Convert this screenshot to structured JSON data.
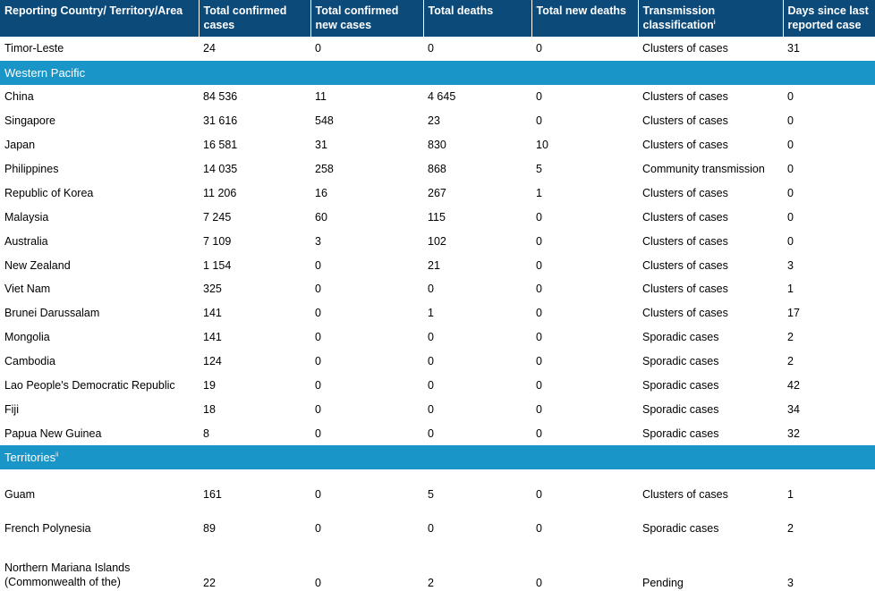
{
  "headers": {
    "country": "Reporting Country/ Territory/Area",
    "confirmed": "Total confirmed cases",
    "new_cases": "Total confirmed new cases",
    "deaths": "Total deaths",
    "new_deaths": "Total new deaths",
    "transmission": "Transmission classification",
    "transmission_sup": "i",
    "days": "Days since last reported case"
  },
  "top_rows": [
    {
      "country": "Timor-Leste",
      "confirmed": "24",
      "new_cases": "0",
      "deaths": "0",
      "new_deaths": "0",
      "transmission": "Clusters of cases",
      "days": "31"
    }
  ],
  "region_western_pacific": "Western Pacific",
  "western_pacific_rows": [
    {
      "country": "China",
      "confirmed": "84 536",
      "new_cases": "11",
      "deaths": "4 645",
      "new_deaths": "0",
      "transmission": "Clusters of cases",
      "days": "0"
    },
    {
      "country": "Singapore",
      "confirmed": "31 616",
      "new_cases": "548",
      "deaths": "23",
      "new_deaths": "0",
      "transmission": "Clusters of cases",
      "days": "0"
    },
    {
      "country": "Japan",
      "confirmed": "16 581",
      "new_cases": "31",
      "deaths": "830",
      "new_deaths": "10",
      "transmission": "Clusters of cases",
      "days": "0"
    },
    {
      "country": "Philippines",
      "confirmed": "14 035",
      "new_cases": "258",
      "deaths": "868",
      "new_deaths": "5",
      "transmission": "Community transmission",
      "days": "0"
    },
    {
      "country": "Republic of Korea",
      "confirmed": "11 206",
      "new_cases": "16",
      "deaths": "267",
      "new_deaths": "1",
      "transmission": "Clusters of cases",
      "days": "0"
    },
    {
      "country": "Malaysia",
      "confirmed": "7 245",
      "new_cases": "60",
      "deaths": "115",
      "new_deaths": "0",
      "transmission": "Clusters of cases",
      "days": "0"
    },
    {
      "country": "Australia",
      "confirmed": "7 109",
      "new_cases": "3",
      "deaths": "102",
      "new_deaths": "0",
      "transmission": "Clusters of cases",
      "days": "0"
    },
    {
      "country": "New Zealand",
      "confirmed": "1 154",
      "new_cases": "0",
      "deaths": "21",
      "new_deaths": "0",
      "transmission": "Clusters of cases",
      "days": "3"
    },
    {
      "country": "Viet Nam",
      "confirmed": "325",
      "new_cases": "0",
      "deaths": "0",
      "new_deaths": "0",
      "transmission": "Clusters of cases",
      "days": "1"
    },
    {
      "country": "Brunei Darussalam",
      "confirmed": "141",
      "new_cases": "0",
      "deaths": "1",
      "new_deaths": "0",
      "transmission": "Clusters of cases",
      "days": "17"
    },
    {
      "country": "Mongolia",
      "confirmed": "141",
      "new_cases": "0",
      "deaths": "0",
      "new_deaths": "0",
      "transmission": "Sporadic cases",
      "days": "2"
    },
    {
      "country": "Cambodia",
      "confirmed": "124",
      "new_cases": "0",
      "deaths": "0",
      "new_deaths": "0",
      "transmission": "Sporadic cases",
      "days": "2"
    },
    {
      "country": "Lao People's Democratic Republic",
      "confirmed": "19",
      "new_cases": "0",
      "deaths": "0",
      "new_deaths": "0",
      "transmission": "Sporadic cases",
      "days": "42"
    },
    {
      "country": "Fiji",
      "confirmed": "18",
      "new_cases": "0",
      "deaths": "0",
      "new_deaths": "0",
      "transmission": "Sporadic cases",
      "days": "34"
    },
    {
      "country": "Papua New Guinea",
      "confirmed": "8",
      "new_cases": "0",
      "deaths": "0",
      "new_deaths": "0",
      "transmission": "Sporadic cases",
      "days": "32"
    }
  ],
  "region_territories": "Territories",
  "region_territories_sup": "ii",
  "territory_rows": [
    {
      "country": "Guam",
      "confirmed": "161",
      "new_cases": "0",
      "deaths": "5",
      "new_deaths": "0",
      "transmission": "Clusters of cases",
      "days": "1"
    },
    {
      "country": "French Polynesia",
      "confirmed": "89",
      "new_cases": "0",
      "deaths": "0",
      "new_deaths": "0",
      "transmission": "Sporadic cases",
      "days": "2"
    },
    {
      "country": "Northern Mariana Islands (Commonwealth of the)",
      "confirmed": "22",
      "new_cases": "0",
      "deaths": "2",
      "new_deaths": "0",
      "transmission": "Pending",
      "days": "3"
    }
  ],
  "colors": {
    "header_bg": "#0c4a7a",
    "region_bg": "#1a95c7"
  }
}
